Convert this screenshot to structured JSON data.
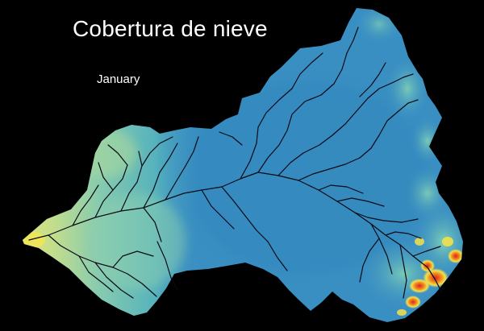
{
  "map": {
    "title": "Cobertura de nieve",
    "month": "January",
    "colors": {
      "background": "#000000",
      "basin_base": "#3a8fc2",
      "low_cover": "#c8df8a",
      "mid_cover": "#6ac3b4",
      "high_cover": "#f4e04a",
      "peak_cover": "#e2221a",
      "rivers": "#0a0a14",
      "text": "#ffffff"
    }
  }
}
